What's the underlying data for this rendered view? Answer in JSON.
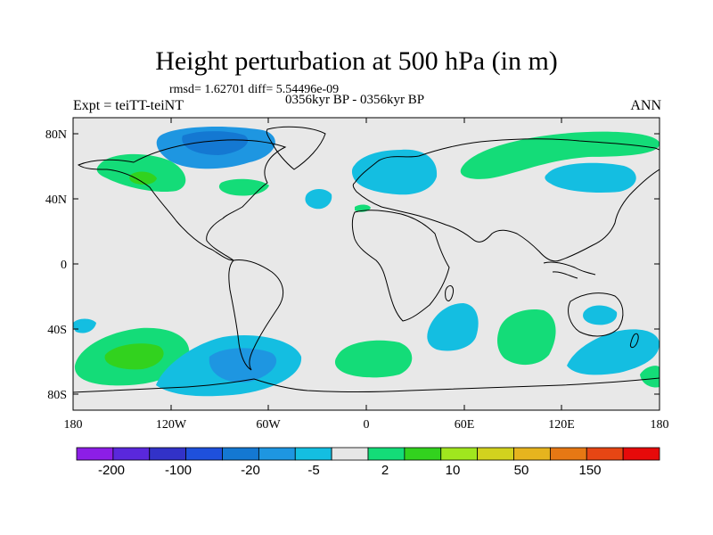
{
  "title": "Height perturbation at 500 hPa (in m)",
  "stats_text": "rmsd= 1.62701 diff= 5.54496e-09",
  "left_label": "Expt = teiTT-teiNT",
  "center_label": "0356kyr BP - 0356kyr BP",
  "right_label": "ANN",
  "map": {
    "projection": "cylindrical-equidistant",
    "background_color": "#e8e8e8",
    "lat_ticks": [
      "80N",
      "40N",
      "0",
      "40S",
      "80S"
    ],
    "lon_ticks": [
      "180",
      "120W",
      "60W",
      "0",
      "60E",
      "120E",
      "180"
    ]
  },
  "colorbar": {
    "colors": [
      "#8c1ee6",
      "#5a28dc",
      "#3232c8",
      "#1e50dc",
      "#1478d2",
      "#1e96e1",
      "#14bee1",
      "#e6e6e6",
      "#14dc78",
      "#32d21e",
      "#a0e61e",
      "#d2d21e",
      "#e6b41e",
      "#e67814",
      "#e64614",
      "#e60a0a"
    ],
    "labels": [
      "-200",
      "-100",
      "-20",
      "-5",
      "2",
      "10",
      "50",
      "150"
    ]
  },
  "anomaly_regions": [
    {
      "name": "north-canada-negative",
      "level": "-5 to -20",
      "color": "#1e96e1"
    },
    {
      "name": "south-pacific-negative",
      "level": "-5 to -20",
      "color": "#1e96e1"
    },
    {
      "name": "north-pacific-positive",
      "level": "2 to 10",
      "color": "#32d21e"
    },
    {
      "name": "southern-ocean-positive",
      "level": "2 to 10",
      "color": "#32d21e"
    }
  ]
}
